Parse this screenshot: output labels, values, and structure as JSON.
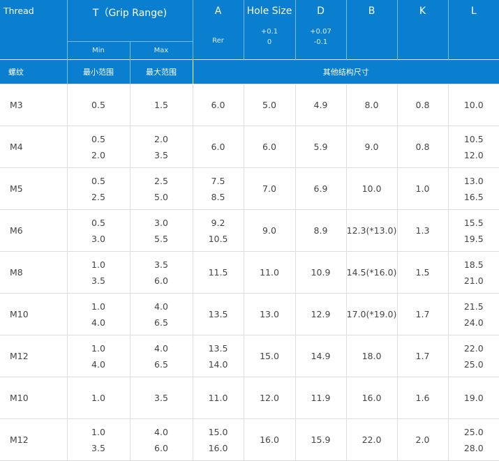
{
  "header": {
    "thread": "Thread",
    "grip_range": "T（Grip Range)",
    "min": "Min",
    "max": "Max",
    "a": "A",
    "a_sub": "Rer",
    "hole_size": "Hole Size",
    "hole_tol_plus": "+0.1",
    "hole_tol_minus": "0",
    "d": "D",
    "d_tol_plus": "+0.07",
    "d_tol_minus": "-0.1",
    "b": "B",
    "k": "K",
    "l": "L",
    "thread_cn": "螺纹",
    "min_cn": "最小范围",
    "max_cn": "最大范围",
    "other_cn": "其他结构尺寸"
  },
  "rows": [
    {
      "thread": "M3",
      "min": [
        "0.5"
      ],
      "max": [
        "1.5"
      ],
      "a": [
        "6.0"
      ],
      "hole": "5.0",
      "d": "4.9",
      "b": "8.0",
      "k": "0.8",
      "l": [
        "10.0"
      ]
    },
    {
      "thread": "M4",
      "min": [
        "0.5",
        "2.0"
      ],
      "max": [
        "2.0",
        "3.5"
      ],
      "a": [
        "6.0"
      ],
      "hole": "6.0",
      "d": "5.9",
      "b": "9.0",
      "k": "0.8",
      "l": [
        "10.5",
        "12.0"
      ]
    },
    {
      "thread": "M5",
      "min": [
        "0.5",
        "2.5"
      ],
      "max": [
        "2.5",
        "5.0"
      ],
      "a": [
        "7.5",
        "8.5"
      ],
      "hole": "7.0",
      "d": "6.9",
      "b": "10.0",
      "k": "1.0",
      "l": [
        "13.0",
        "16.5"
      ]
    },
    {
      "thread": "M6",
      "min": [
        "0.5",
        "3.0"
      ],
      "max": [
        "3.0",
        "5.5"
      ],
      "a": [
        "9.2",
        "10.5"
      ],
      "hole": "9.0",
      "d": "8.9",
      "b": "12.3(*13.0)",
      "k": "1.3",
      "l": [
        "15.5",
        "19.5"
      ]
    },
    {
      "thread": "M8",
      "min": [
        "1.0",
        "3.5"
      ],
      "max": [
        "3.5",
        "6.0"
      ],
      "a": [
        "11.5"
      ],
      "hole": "11.0",
      "d": "10.9",
      "b": "14.5(*16.0)",
      "k": "1.5",
      "l": [
        "18.5",
        "21.0"
      ]
    },
    {
      "thread": "M10",
      "min": [
        "1.0",
        "4.0"
      ],
      "max": [
        "4.0",
        "6.5"
      ],
      "a": [
        "13.5"
      ],
      "hole": "13.0",
      "d": "12.9",
      "b": "17.0(*19.0)",
      "k": "1.7",
      "l": [
        "21.5",
        "24.0"
      ]
    },
    {
      "thread": "M12",
      "min": [
        "1.0",
        "4.0"
      ],
      "max": [
        "4.0",
        "6.5"
      ],
      "a": [
        "13.5",
        "14.0"
      ],
      "hole": "15.0",
      "d": "14.9",
      "b": "18.0",
      "k": "1.7",
      "l": [
        "22.0",
        "25.0"
      ]
    },
    {
      "thread": "M10",
      "min": [
        "1.0"
      ],
      "max": [
        "3.5"
      ],
      "a": [
        "11.0"
      ],
      "hole": "12.0",
      "d": "11.9",
      "b": "16.0",
      "k": "1.6",
      "l": [
        "19.0"
      ]
    },
    {
      "thread": "M12",
      "min": [
        "1.0",
        "3.5"
      ],
      "max": [
        "4.0",
        "6.0"
      ],
      "a": [
        "15.0",
        "16.0"
      ],
      "hole": "16.0",
      "d": "15.9",
      "b": "22.0",
      "k": "2.0",
      "l": [
        "25.0",
        "28.0"
      ]
    }
  ]
}
